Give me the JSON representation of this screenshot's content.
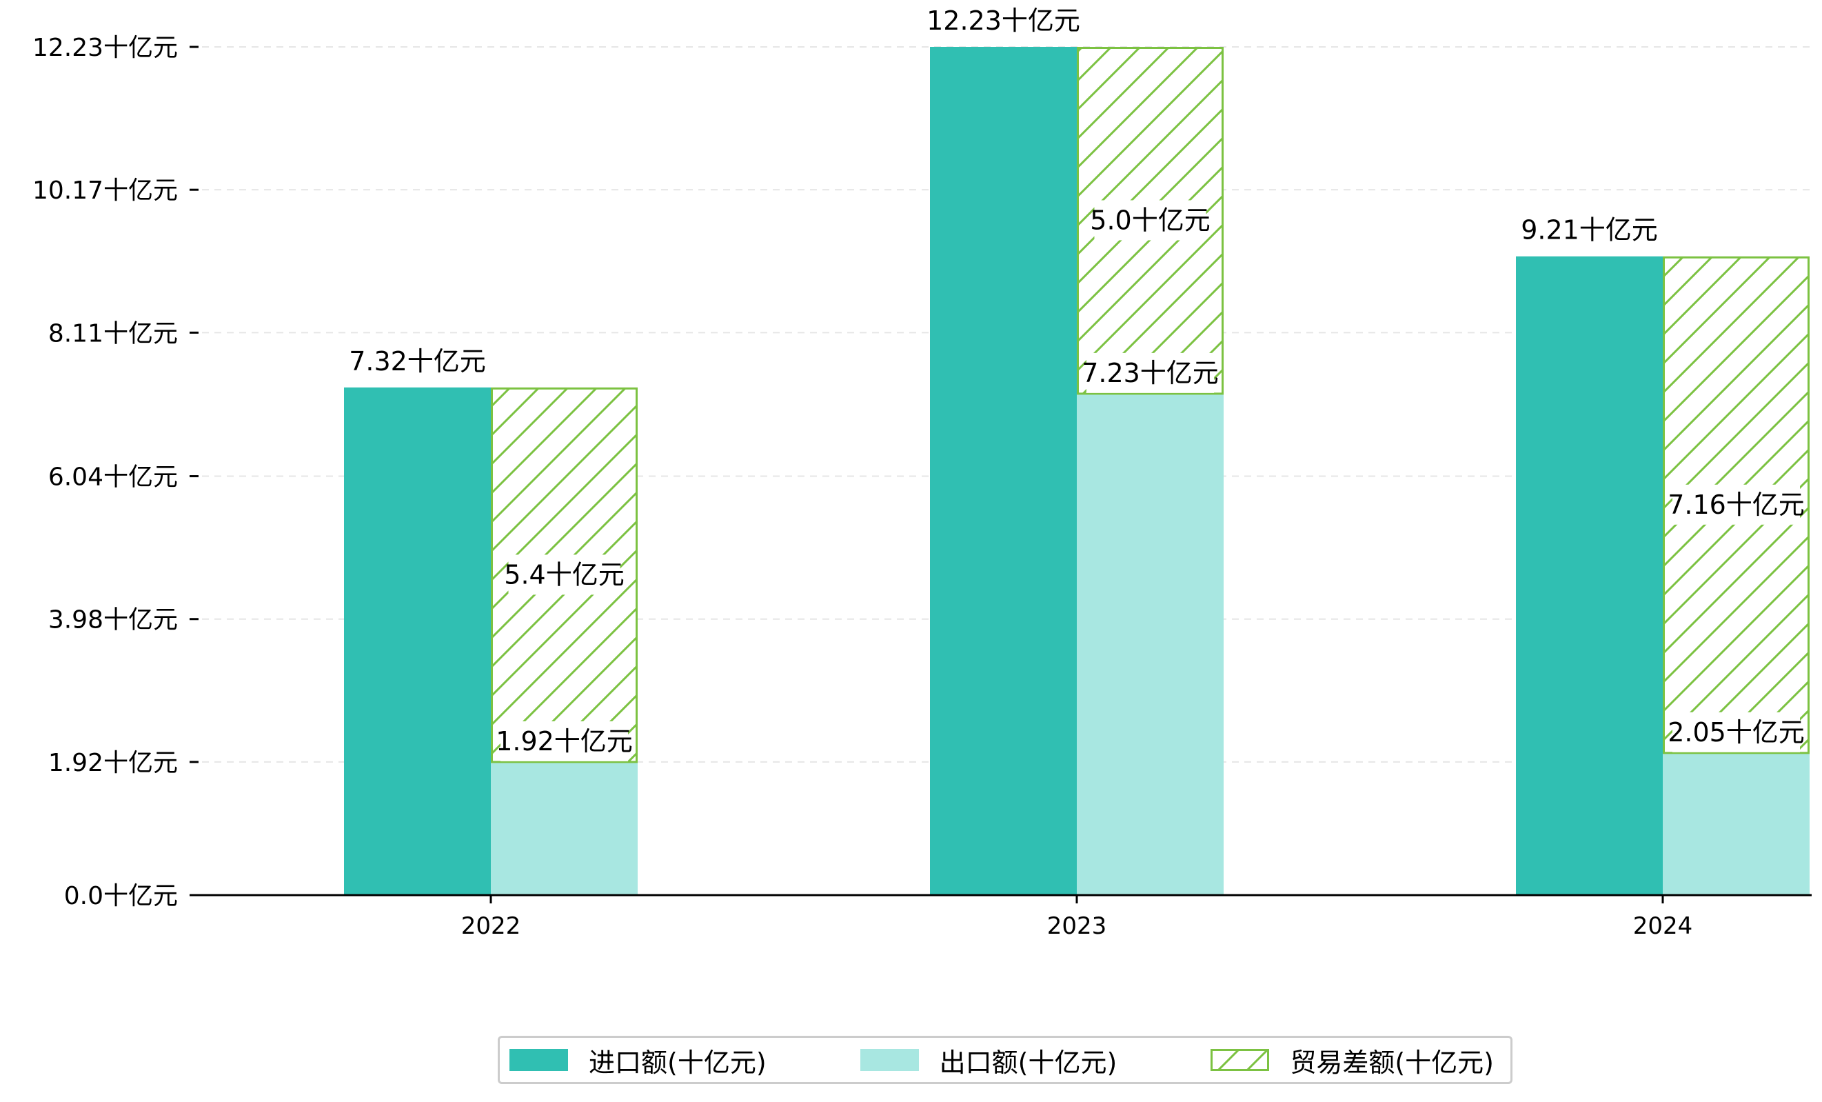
{
  "chart_data": {
    "type": "bar",
    "categories": [
      "2022",
      "2023",
      "2024"
    ],
    "series": [
      {
        "name": "进口额(十亿元)",
        "values": [
          7.32,
          12.23,
          9.21
        ],
        "labels": [
          "7.32十亿元",
          "12.23十亿元",
          "9.21十亿元"
        ],
        "color": "#30bfb2"
      },
      {
        "name": "出口额(十亿元)",
        "values": [
          1.92,
          7.23,
          2.05
        ],
        "labels": [
          "1.92十亿元",
          "7.23十亿元",
          "2.05十亿元"
        ],
        "color": "#a8e7e1"
      },
      {
        "name": "贸易差额(十亿元)",
        "values": [
          5.4,
          5.0,
          7.16
        ],
        "labels": [
          "5.4十亿元",
          "5.0十亿元",
          "7.16十亿元"
        ],
        "color": "#7cc242",
        "stacked_on": "出口额(十亿元)",
        "pattern": "hatch"
      }
    ],
    "y_ticks": [
      0.0,
      1.92,
      3.98,
      6.04,
      8.11,
      10.17,
      12.23
    ],
    "y_tick_labels": [
      "0.0十亿元",
      "1.92十亿元",
      "3.98十亿元",
      "6.04十亿元",
      "8.11十亿元",
      "10.17十亿元",
      "12.23十亿元"
    ],
    "ylim": [
      0,
      12.23
    ],
    "grid": "horizontal-dashed",
    "legend_position": "bottom-center"
  }
}
